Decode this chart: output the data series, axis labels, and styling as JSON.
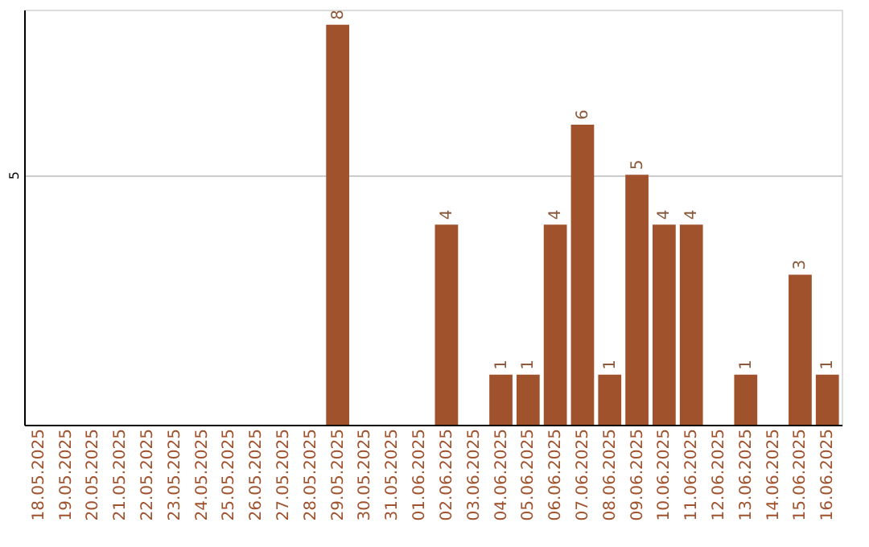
{
  "chart_data": {
    "type": "bar",
    "categories": [
      "18.05.2025",
      "19.05.2025",
      "20.05.2025",
      "21.05.2025",
      "22.05.2025",
      "23.05.2025",
      "24.05.2025",
      "25.05.2025",
      "26.05.2025",
      "27.05.2025",
      "28.05.2025",
      "29.05.2025",
      "30.05.2025",
      "31.05.2025",
      "01.06.2025",
      "02.06.2025",
      "03.06.2025",
      "04.06.2025",
      "05.06.2025",
      "06.06.2025",
      "07.06.2025",
      "08.06.2025",
      "09.06.2025",
      "10.06.2025",
      "11.06.2025",
      "12.06.2025",
      "13.06.2025",
      "14.06.2025",
      "15.06.2025",
      "16.06.2025"
    ],
    "values": [
      0,
      0,
      0,
      0,
      0,
      0,
      0,
      0,
      0,
      0,
      0,
      8,
      0,
      0,
      0,
      4,
      0,
      1,
      1,
      4,
      6,
      1,
      5,
      4,
      4,
      0,
      1,
      0,
      3,
      1
    ],
    "value_labels": [
      null,
      null,
      null,
      null,
      null,
      null,
      null,
      null,
      null,
      null,
      null,
      "8",
      null,
      null,
      null,
      "4",
      null,
      "1",
      "1",
      "4",
      "6",
      "1",
      "5",
      "4",
      "4",
      null,
      "1",
      null,
      "3",
      "1"
    ],
    "color": "#a0522d",
    "ylim": [
      0,
      8.3
    ],
    "yticks": [
      5
    ],
    "grid": "y"
  }
}
